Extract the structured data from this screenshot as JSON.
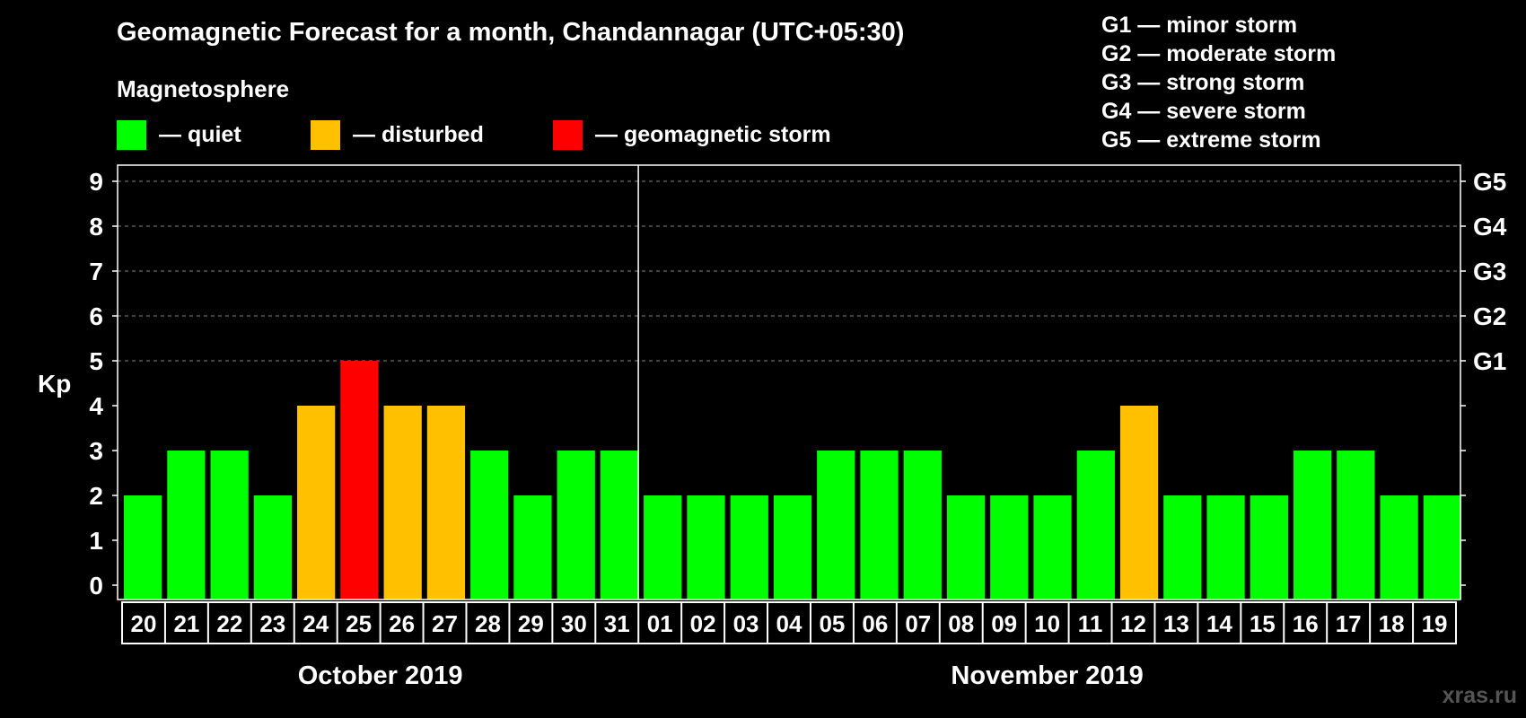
{
  "header": {
    "title": "Geomagnetic Forecast for a month, Chandannagar (UTC+05:30)",
    "subtitle": "Magnetosphere"
  },
  "legend": [
    {
      "label": "— quiet",
      "color": "#00ff00"
    },
    {
      "label": "— disturbed",
      "color": "#ffc000"
    },
    {
      "label": "— geomagnetic storm",
      "color": "#ff0000"
    }
  ],
  "storm_levels": [
    "G1 — minor storm",
    "G2 — moderate storm",
    "G3 — strong storm",
    "G4 — severe storm",
    "G5 — extreme storm"
  ],
  "watermark": "xras.ru",
  "chart_data": {
    "type": "bar",
    "ylabel": "Kp",
    "ylim": [
      0,
      9
    ],
    "yticks": [
      "0",
      "1",
      "2",
      "3",
      "4",
      "5",
      "6",
      "7",
      "8",
      "9"
    ],
    "right_ticks": [
      {
        "value": 5,
        "label": "G1"
      },
      {
        "value": 6,
        "label": "G2"
      },
      {
        "value": 7,
        "label": "G3"
      },
      {
        "value": 8,
        "label": "G4"
      },
      {
        "value": 9,
        "label": "G5"
      }
    ],
    "months": [
      {
        "label": "October 2019",
        "count": 12
      },
      {
        "label": "November 2019",
        "count": 19
      }
    ],
    "categories": [
      "20",
      "21",
      "22",
      "23",
      "24",
      "25",
      "26",
      "27",
      "28",
      "29",
      "30",
      "31",
      "01",
      "02",
      "03",
      "04",
      "05",
      "06",
      "07",
      "08",
      "09",
      "10",
      "11",
      "12",
      "13",
      "14",
      "15",
      "16",
      "17",
      "18",
      "19"
    ],
    "values": [
      2,
      3,
      3,
      2,
      4,
      5,
      4,
      4,
      3,
      2,
      3,
      3,
      2,
      2,
      2,
      2,
      3,
      3,
      3,
      2,
      2,
      2,
      3,
      4,
      2,
      2,
      2,
      3,
      3,
      2,
      2
    ],
    "color_thresholds": {
      "quiet_max": 3,
      "disturbed": 4,
      "storm_min": 5
    },
    "colors": {
      "quiet": "#00ff00",
      "disturbed": "#ffc000",
      "storm": "#ff0000",
      "grid": "#888888",
      "axis": "#ffffff"
    },
    "grid": true
  }
}
